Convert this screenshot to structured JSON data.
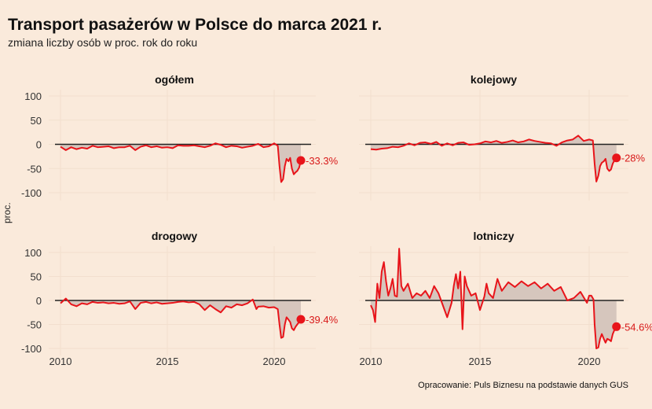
{
  "title": "Transport pasażerów w Polsce do marca 2021 r.",
  "subtitle": "zmiana liczby osób w proc. rok do roku",
  "ylabel": "proc.",
  "caption": "Opracowanie: Puls Biznesu na podstawie danych GUS",
  "colors": {
    "line": "#e8141a",
    "fill": "#d6c6bd",
    "zero": "#222222",
    "grid": "#f2dfce",
    "background": "#faeadb"
  },
  "chart_data": {
    "type": "line",
    "x_ticks": [
      2010,
      2015,
      2020
    ],
    "y_ticks": [
      100,
      50,
      0,
      -50,
      -100
    ],
    "xlim": [
      2009.7,
      2021.9
    ],
    "ylim": [
      -110,
      120
    ],
    "panels": [
      {
        "name": "ogółem",
        "end_label": "-33.3%",
        "end_value": -33.3,
        "x": [
          2010.0,
          2010.25,
          2010.5,
          2010.75,
          2011.0,
          2011.25,
          2011.5,
          2011.75,
          2012.0,
          2012.25,
          2012.5,
          2012.75,
          2013.0,
          2013.25,
          2013.5,
          2013.75,
          2014.0,
          2014.25,
          2014.5,
          2014.75,
          2015.0,
          2015.25,
          2015.5,
          2015.75,
          2016.0,
          2016.25,
          2016.5,
          2016.75,
          2017.0,
          2017.25,
          2017.5,
          2017.75,
          2018.0,
          2018.25,
          2018.5,
          2018.75,
          2019.0,
          2019.25,
          2019.5,
          2019.75,
          2020.0,
          2020.17,
          2020.25,
          2020.33,
          2020.42,
          2020.5,
          2020.58,
          2020.67,
          2020.75,
          2020.83,
          2020.92,
          2021.0,
          2021.08,
          2021.17,
          2021.25
        ],
        "y": [
          -5,
          -12,
          -6,
          -10,
          -7,
          -9,
          -3,
          -6,
          -5,
          -4,
          -8,
          -6,
          -6,
          -3,
          -12,
          -5,
          -2,
          -6,
          -4,
          -7,
          -6,
          -8,
          -2,
          -3,
          -3,
          -2,
          -4,
          -6,
          -3,
          2,
          -1,
          -6,
          -3,
          -4,
          -7,
          -5,
          -3,
          1,
          -6,
          -4,
          2,
          -3,
          -45,
          -78,
          -72,
          -45,
          -30,
          -35,
          -28,
          -50,
          -62,
          -58,
          -55,
          -48,
          -33.3
        ]
      },
      {
        "name": "kolejowy",
        "end_label": "-28%",
        "end_value": -28,
        "x": [
          2010.0,
          2010.25,
          2010.5,
          2010.75,
          2011.0,
          2011.25,
          2011.5,
          2011.75,
          2012.0,
          2012.25,
          2012.5,
          2012.75,
          2013.0,
          2013.25,
          2013.5,
          2013.75,
          2014.0,
          2014.25,
          2014.5,
          2014.75,
          2015.0,
          2015.25,
          2015.5,
          2015.75,
          2016.0,
          2016.25,
          2016.5,
          2016.75,
          2017.0,
          2017.25,
          2017.5,
          2017.75,
          2018.0,
          2018.25,
          2018.5,
          2018.75,
          2019.0,
          2019.25,
          2019.5,
          2019.75,
          2020.0,
          2020.17,
          2020.25,
          2020.33,
          2020.42,
          2020.5,
          2020.58,
          2020.67,
          2020.75,
          2020.83,
          2020.92,
          2021.0,
          2021.08,
          2021.17,
          2021.25
        ],
        "y": [
          -10,
          -11,
          -9,
          -8,
          -5,
          -6,
          -3,
          2,
          -2,
          3,
          4,
          1,
          5,
          -3,
          2,
          -2,
          3,
          4,
          -1,
          0,
          2,
          6,
          4,
          7,
          3,
          5,
          8,
          4,
          6,
          10,
          7,
          5,
          3,
          2,
          -3,
          4,
          8,
          10,
          18,
          7,
          10,
          8,
          -40,
          -77,
          -65,
          -45,
          -38,
          -35,
          -30,
          -50,
          -55,
          -52,
          -40,
          -32,
          -28
        ]
      },
      {
        "name": "drogowy",
        "end_label": "-39.4%",
        "end_value": -39.4,
        "x": [
          2010.0,
          2010.25,
          2010.5,
          2010.75,
          2011.0,
          2011.25,
          2011.5,
          2011.75,
          2012.0,
          2012.25,
          2012.5,
          2012.75,
          2013.0,
          2013.25,
          2013.5,
          2013.75,
          2014.0,
          2014.25,
          2014.5,
          2014.75,
          2015.0,
          2015.25,
          2015.5,
          2015.75,
          2016.0,
          2016.25,
          2016.5,
          2016.75,
          2017.0,
          2017.25,
          2017.5,
          2017.75,
          2018.0,
          2018.25,
          2018.5,
          2018.75,
          2019.0,
          2019.17,
          2019.25,
          2019.5,
          2019.75,
          2020.0,
          2020.17,
          2020.25,
          2020.33,
          2020.42,
          2020.5,
          2020.58,
          2020.67,
          2020.75,
          2020.83,
          2020.92,
          2021.0,
          2021.08,
          2021.17,
          2021.25
        ],
        "y": [
          -6,
          4,
          -8,
          -12,
          -6,
          -8,
          -3,
          -5,
          -4,
          -6,
          -5,
          -7,
          -6,
          -2,
          -18,
          -5,
          -3,
          -6,
          -4,
          -7,
          -6,
          -5,
          -3,
          -2,
          -4,
          -3,
          -8,
          -20,
          -10,
          -18,
          -25,
          -12,
          -15,
          -8,
          -10,
          -6,
          2,
          -18,
          -13,
          -12,
          -15,
          -14,
          -18,
          -50,
          -78,
          -76,
          -50,
          -35,
          -40,
          -45,
          -58,
          -62,
          -55,
          -50,
          -45,
          -39.4
        ]
      },
      {
        "name": "lotniczy",
        "end_label": "-54.6%",
        "end_value": -54.6,
        "x": [
          2010.0,
          2010.1,
          2010.2,
          2010.3,
          2010.4,
          2010.5,
          2010.6,
          2010.7,
          2010.8,
          2010.9,
          2011.0,
          2011.1,
          2011.2,
          2011.3,
          2011.4,
          2011.5,
          2011.7,
          2011.9,
          2012.1,
          2012.3,
          2012.5,
          2012.7,
          2012.9,
          2013.1,
          2013.3,
          2013.5,
          2013.7,
          2013.8,
          2013.9,
          2014.0,
          2014.1,
          2014.2,
          2014.3,
          2014.4,
          2014.6,
          2014.8,
          2015.0,
          2015.2,
          2015.3,
          2015.4,
          2015.6,
          2015.8,
          2016.0,
          2016.3,
          2016.6,
          2016.9,
          2017.2,
          2017.5,
          2017.8,
          2018.1,
          2018.4,
          2018.7,
          2019.0,
          2019.3,
          2019.6,
          2019.9,
          2020.0,
          2020.1,
          2020.2,
          2020.25,
          2020.33,
          2020.42,
          2020.5,
          2020.58,
          2020.67,
          2020.75,
          2020.83,
          2020.92,
          2021.0,
          2021.08,
          2021.17,
          2021.25
        ],
        "y": [
          -10,
          -20,
          -45,
          35,
          5,
          60,
          80,
          40,
          10,
          25,
          45,
          10,
          8,
          108,
          30,
          20,
          35,
          5,
          15,
          10,
          20,
          5,
          30,
          15,
          -10,
          -35,
          -5,
          30,
          55,
          25,
          60,
          -60,
          50,
          30,
          10,
          15,
          -20,
          8,
          35,
          15,
          5,
          45,
          20,
          38,
          28,
          40,
          30,
          38,
          25,
          35,
          20,
          28,
          0,
          5,
          18,
          -5,
          10,
          10,
          2,
          -50,
          -100,
          -98,
          -80,
          -70,
          -80,
          -88,
          -80,
          -82,
          -85,
          -70,
          -60,
          -54.6
        ]
      }
    ]
  }
}
